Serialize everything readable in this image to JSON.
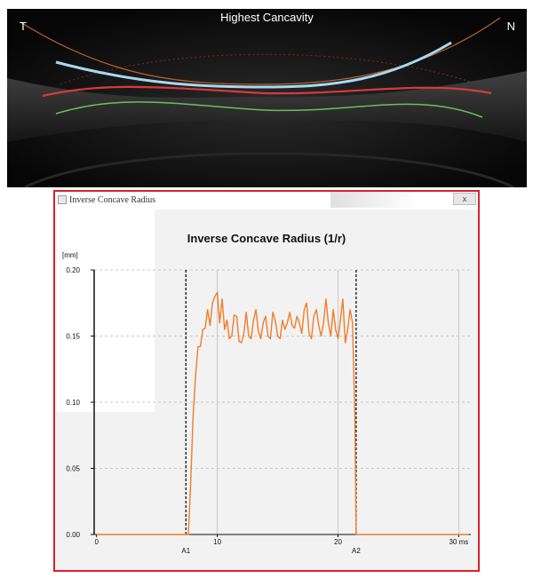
{
  "scan": {
    "title": "Highest Cancavity",
    "left_label": "T",
    "right_label": "N"
  },
  "window": {
    "title": "Inverse Concave Radius",
    "close_label": "x"
  },
  "colors": {
    "border": "#d7232b",
    "series": "#f07d2a",
    "grid": "#c8c8c8",
    "cornea_blue": "#a8d8f0",
    "cornea_red": "#d83a3a",
    "cornea_green": "#6cbf5a"
  },
  "chart_data": {
    "type": "line",
    "title": "Inverse Concave Radius (1/r)",
    "ylabel": "[mm]",
    "xlabel": "",
    "xlim": [
      -0.2,
      31
    ],
    "ylim": [
      0,
      0.2
    ],
    "x_ticks": [
      {
        "value": 0,
        "label": "0"
      },
      {
        "value": 10,
        "label": "10"
      },
      {
        "value": 20,
        "label": "20"
      },
      {
        "value": 30,
        "label": "30 ms"
      }
    ],
    "y_ticks": [
      {
        "value": 0,
        "label": "0.00"
      },
      {
        "value": 0.05,
        "label": "0.05"
      },
      {
        "value": 0.1,
        "label": "0.10"
      },
      {
        "value": 0.15,
        "label": "0.15"
      },
      {
        "value": 0.2,
        "label": "0.20"
      }
    ],
    "grid": true,
    "markers": [
      {
        "x": 7.4,
        "label": "A1"
      },
      {
        "x": 21.5,
        "label": "A2"
      }
    ],
    "series": [
      {
        "points": [
          [
            0,
            0
          ],
          [
            7.6,
            0
          ],
          [
            7.8,
            0.04
          ],
          [
            8.0,
            0.09
          ],
          [
            8.2,
            0.12
          ],
          [
            8.4,
            0.142
          ],
          [
            8.6,
            0.142
          ],
          [
            8.8,
            0.155
          ],
          [
            9.0,
            0.156
          ],
          [
            9.2,
            0.17
          ],
          [
            9.4,
            0.158
          ],
          [
            9.6,
            0.175
          ],
          [
            9.8,
            0.18
          ],
          [
            10.0,
            0.183
          ],
          [
            10.2,
            0.16
          ],
          [
            10.4,
            0.178
          ],
          [
            10.6,
            0.155
          ],
          [
            10.8,
            0.162
          ],
          [
            11.0,
            0.148
          ],
          [
            11.2,
            0.15
          ],
          [
            11.4,
            0.166
          ],
          [
            11.6,
            0.165
          ],
          [
            11.8,
            0.146
          ],
          [
            12.0,
            0.145
          ],
          [
            12.2,
            0.152
          ],
          [
            12.4,
            0.168
          ],
          [
            12.6,
            0.15
          ],
          [
            12.8,
            0.148
          ],
          [
            13.0,
            0.162
          ],
          [
            13.2,
            0.17
          ],
          [
            13.4,
            0.154
          ],
          [
            13.6,
            0.148
          ],
          [
            13.8,
            0.16
          ],
          [
            14.0,
            0.165
          ],
          [
            14.2,
            0.15
          ],
          [
            14.4,
            0.148
          ],
          [
            14.6,
            0.168
          ],
          [
            14.8,
            0.162
          ],
          [
            15.0,
            0.15
          ],
          [
            15.2,
            0.148
          ],
          [
            15.4,
            0.162
          ],
          [
            15.6,
            0.155
          ],
          [
            15.8,
            0.16
          ],
          [
            16.0,
            0.168
          ],
          [
            16.2,
            0.158
          ],
          [
            16.4,
            0.156
          ],
          [
            16.6,
            0.165
          ],
          [
            16.8,
            0.16
          ],
          [
            17.0,
            0.152
          ],
          [
            17.2,
            0.17
          ],
          [
            17.4,
            0.175
          ],
          [
            17.6,
            0.152
          ],
          [
            17.8,
            0.148
          ],
          [
            18.0,
            0.165
          ],
          [
            18.2,
            0.17
          ],
          [
            18.4,
            0.158
          ],
          [
            18.6,
            0.15
          ],
          [
            18.8,
            0.16
          ],
          [
            19.0,
            0.178
          ],
          [
            19.2,
            0.16
          ],
          [
            19.4,
            0.15
          ],
          [
            19.6,
            0.17
          ],
          [
            19.8,
            0.155
          ],
          [
            20.0,
            0.148
          ],
          [
            20.2,
            0.162
          ],
          [
            20.4,
            0.178
          ],
          [
            20.6,
            0.145
          ],
          [
            20.8,
            0.155
          ],
          [
            21.0,
            0.17
          ],
          [
            21.2,
            0.16
          ],
          [
            21.4,
            0.09
          ],
          [
            21.5,
            0
          ],
          [
            30.8,
            0
          ]
        ]
      }
    ]
  }
}
